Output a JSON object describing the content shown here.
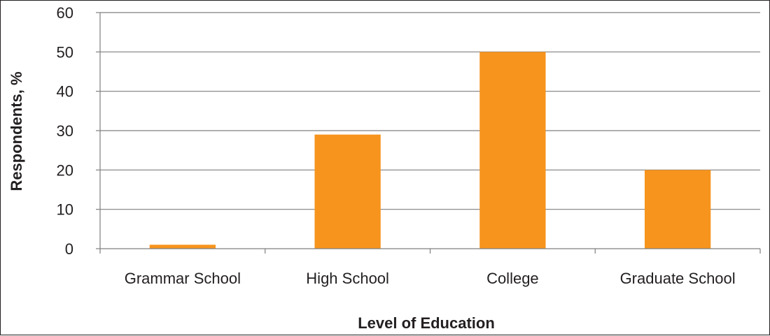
{
  "chart_data": {
    "type": "bar",
    "categories": [
      "Grammar School",
      "High School",
      "College",
      "Graduate School"
    ],
    "values": [
      1,
      29,
      50,
      20
    ],
    "xlabel": "Level of Education",
    "ylabel": "Respondents, %",
    "ylim": [
      0,
      60
    ],
    "yticks": [
      "0",
      "10",
      "20",
      "30",
      "40",
      "50",
      "60"
    ],
    "grid": true,
    "legend": "none",
    "colors": {
      "bar": "#f7941d",
      "grid": "#7f7f7f",
      "text": "#231f20"
    }
  }
}
